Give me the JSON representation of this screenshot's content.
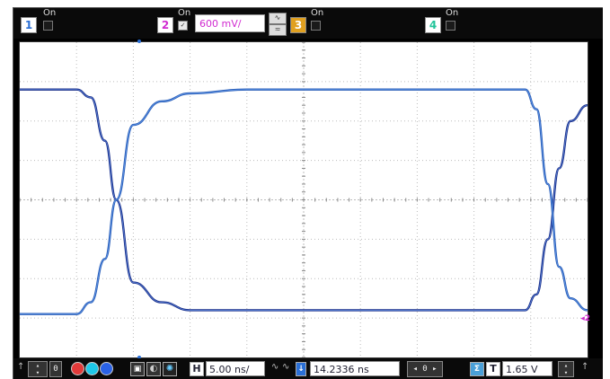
{
  "channels": [
    {
      "num": "1",
      "state": "On",
      "color": "#2a6fd6",
      "scale": ""
    },
    {
      "num": "2",
      "state": "On",
      "color": "#d02ad0",
      "scale": "600 mV/"
    },
    {
      "num": "3",
      "state": "On",
      "color": "#e0a020",
      "scale": ""
    },
    {
      "num": "4",
      "state": "On",
      "color": "#22c49a",
      "scale": ""
    }
  ],
  "horizontal": {
    "label": "H",
    "scale": "5.00 ns/"
  },
  "position": {
    "value": "14.2336 ns"
  },
  "trigger": {
    "label": "T",
    "level": "1.65 V"
  },
  "marker": {
    "ch2": "2"
  },
  "icons": {
    "coupling_ac": "ac-coupling-icon",
    "coupling_dc": "dc-coupling-icon"
  },
  "chart_data": {
    "type": "line",
    "title": "",
    "xlabel": "",
    "ylabel": "",
    "x_divisions": 10,
    "y_divisions": 8,
    "xlim": [
      0,
      10
    ],
    "ylim": [
      -4,
      4
    ],
    "grid": true,
    "series": [
      {
        "x": [
          0,
          1.0,
          1.25,
          1.5,
          1.7,
          2.0,
          2.5,
          3.0,
          4.0,
          8.9,
          9.1,
          9.3,
          9.5,
          9.7,
          10
        ],
        "values": [
          2.8,
          2.8,
          2.6,
          1.5,
          0,
          -2.1,
          -2.6,
          -2.8,
          -2.8,
          -2.8,
          -2.4,
          -1.0,
          0.8,
          2.0,
          2.4
        ]
      },
      {
        "x": [
          0,
          1.0,
          1.25,
          1.5,
          1.7,
          2.0,
          2.5,
          3.0,
          4.0,
          8.9,
          9.1,
          9.3,
          9.5,
          9.7,
          10
        ],
        "values": [
          -2.9,
          -2.9,
          -2.6,
          -1.5,
          0,
          1.9,
          2.5,
          2.7,
          2.8,
          2.8,
          2.3,
          0.4,
          -1.7,
          -2.5,
          -2.8
        ]
      }
    ]
  }
}
